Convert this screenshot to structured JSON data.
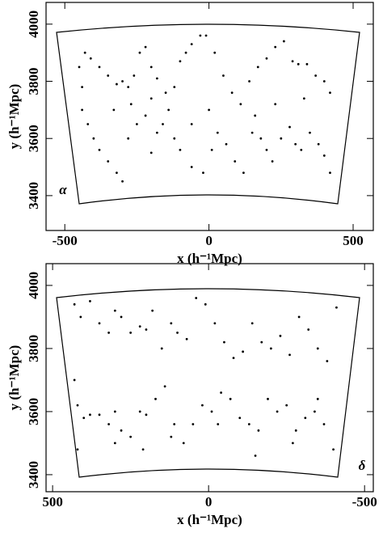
{
  "chart_data": [
    {
      "type": "scatter",
      "panel_label": "α",
      "xlabel": "x (h⁻¹Mpc)",
      "ylabel": "y (h⁻¹Mpc)",
      "xlim": [
        -565,
        570
      ],
      "ylim": [
        3278,
        4076
      ],
      "xticks": [
        -500,
        0,
        500
      ],
      "yticks": [
        3400,
        3600,
        3800,
        4000
      ],
      "color": "#000000",
      "x": [
        -430,
        -410,
        -380,
        -350,
        -320,
        -300,
        -280,
        -260,
        -240,
        -220,
        -200,
        -180,
        -150,
        -120,
        -100,
        -80,
        -60,
        -30,
        -10,
        20,
        50,
        80,
        110,
        140,
        170,
        200,
        230,
        260,
        290,
        310,
        340,
        370,
        400,
        420,
        -440,
        -420,
        -400,
        -380,
        -350,
        -320,
        -300,
        -280,
        -250,
        -220,
        -200,
        -180,
        -160,
        -140,
        -120,
        -100,
        -60,
        -20,
        10,
        30,
        60,
        90,
        120,
        150,
        180,
        200,
        220,
        250,
        280,
        300,
        320,
        350,
        380,
        400,
        420,
        -450,
        -440,
        -330,
        -270,
        -200,
        230,
        330,
        160,
        -60,
        0
      ],
      "y": [
        3900,
        3880,
        3850,
        3820,
        3790,
        3800,
        3780,
        3820,
        3900,
        3920,
        3850,
        3810,
        3760,
        3780,
        3870,
        3900,
        3930,
        3960,
        3960,
        3900,
        3820,
        3760,
        3720,
        3800,
        3850,
        3880,
        3920,
        3940,
        3870,
        3860,
        3860,
        3820,
        3800,
        3760,
        3700,
        3650,
        3600,
        3560,
        3520,
        3480,
        3450,
        3600,
        3650,
        3680,
        3550,
        3620,
        3650,
        3700,
        3600,
        3560,
        3500,
        3480,
        3560,
        3620,
        3580,
        3520,
        3480,
        3620,
        3600,
        3560,
        3520,
        3600,
        3640,
        3580,
        3560,
        3620,
        3580,
        3540,
        3480,
        3850,
        3780,
        3700,
        3720,
        3740,
        3720,
        3740,
        3680,
        3650,
        3700
      ]
    },
    {
      "type": "scatter",
      "panel_label": "δ",
      "xlabel": "x (h⁻¹Mpc)",
      "ylabel": "y (h⁻¹Mpc)",
      "xlim": [
        521,
        -528
      ],
      "ylim": [
        3346,
        4069
      ],
      "xticks": [
        500,
        0,
        -500
      ],
      "yticks": [
        3400,
        3600,
        3800,
        4000
      ],
      "color": "#000000",
      "x": [
        430,
        410,
        380,
        350,
        320,
        300,
        280,
        250,
        220,
        200,
        180,
        150,
        120,
        100,
        70,
        40,
        10,
        -20,
        -50,
        -80,
        -110,
        -140,
        -170,
        -200,
        -230,
        -260,
        -290,
        -320,
        -350,
        -380,
        -410,
        430,
        420,
        400,
        380,
        350,
        320,
        300,
        280,
        250,
        220,
        200,
        170,
        140,
        110,
        80,
        50,
        20,
        -10,
        -40,
        -70,
        -100,
        -130,
        -160,
        -190,
        -220,
        -250,
        -280,
        -310,
        -340,
        -370,
        -400,
        420,
        300,
        210,
        120,
        -30,
        -150,
        -270,
        -350
      ],
      "y": [
        3940,
        3900,
        3950,
        3880,
        3850,
        3920,
        3900,
        3850,
        3870,
        3860,
        3920,
        3800,
        3880,
        3850,
        3830,
        3960,
        3940,
        3880,
        3820,
        3770,
        3790,
        3880,
        3820,
        3800,
        3840,
        3780,
        3900,
        3860,
        3800,
        3760,
        3930,
        3700,
        3620,
        3580,
        3590,
        3590,
        3560,
        3600,
        3540,
        3520,
        3600,
        3590,
        3640,
        3680,
        3560,
        3500,
        3560,
        3620,
        3600,
        3660,
        3640,
        3580,
        3560,
        3540,
        3640,
        3600,
        3620,
        3540,
        3580,
        3600,
        3560,
        3480,
        3480,
        3500,
        3480,
        3520,
        3560,
        3460,
        3500,
        3640
      ]
    }
  ]
}
